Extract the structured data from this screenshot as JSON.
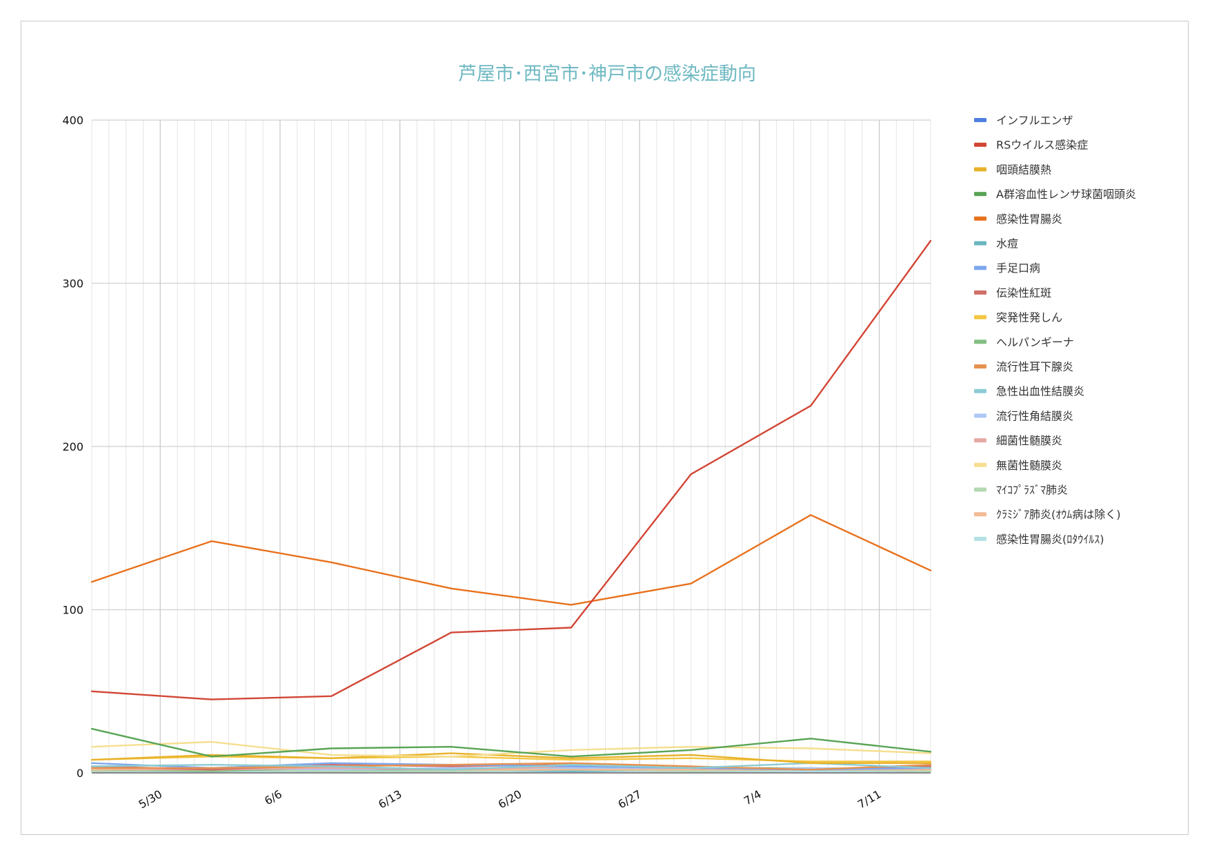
{
  "chart_data": {
    "type": "line",
    "title": "芦屋市･西宮市･神戸市の感染症動向",
    "xlabel": "",
    "ylabel": "",
    "ylim": [
      0,
      400
    ],
    "yticks": [
      0,
      100,
      200,
      300,
      400
    ],
    "x_tick_labels": [
      "5/30",
      "6/6",
      "6/13",
      "6/20",
      "6/27",
      "7/4",
      "7/11"
    ],
    "x_tick_days": [
      4,
      11,
      18,
      25,
      32,
      39,
      46
    ],
    "x": [
      0,
      7,
      14,
      21,
      28,
      35,
      42,
      49
    ],
    "grid": true,
    "legend_position": "right",
    "series": [
      {
        "name": "インフルエンザ",
        "color": "#4f7fdf",
        "values": [
          1,
          1,
          1,
          1,
          1,
          1,
          1,
          1
        ]
      },
      {
        "name": "RSウイルス感染症",
        "color": "#d24535",
        "values": [
          50,
          45,
          47,
          86,
          89,
          183,
          225,
          326
        ]
      },
      {
        "name": "咽頭結膜熱",
        "color": "#e8b22b",
        "values": [
          8,
          11,
          9,
          12,
          9,
          11,
          6,
          6
        ]
      },
      {
        "name": "A群溶血性レンサ球菌咽頭炎",
        "color": "#58a455",
        "values": [
          27,
          10,
          15,
          16,
          10,
          14,
          21,
          13
        ]
      },
      {
        "name": "感染性胃腸炎",
        "color": "#e8711c",
        "values": [
          117,
          142,
          129,
          113,
          103,
          116,
          158,
          124
        ]
      },
      {
        "name": "水痘",
        "color": "#6bb6c1",
        "values": [
          2,
          2,
          1,
          2,
          1,
          2,
          2,
          1
        ]
      },
      {
        "name": "手足口病",
        "color": "#7ea7ee",
        "values": [
          6,
          3,
          6,
          5,
          4,
          3,
          2,
          3
        ]
      },
      {
        "name": "伝染性紅斑",
        "color": "#cf6f68",
        "values": [
          4,
          2,
          5,
          4,
          5,
          3,
          2,
          4
        ]
      },
      {
        "name": "突発性発しん",
        "color": "#f3c642",
        "values": [
          8,
          10,
          9,
          10,
          8,
          9,
          7,
          7
        ]
      },
      {
        "name": "ヘルパンギーナ",
        "color": "#84be82",
        "values": [
          2,
          1,
          3,
          2,
          2,
          3,
          3,
          2
        ]
      },
      {
        "name": "流行性耳下腺炎",
        "color": "#e6924f",
        "values": [
          3,
          3,
          4,
          5,
          6,
          4,
          2,
          5
        ]
      },
      {
        "name": "急性出血性結膜炎",
        "color": "#8ccbd3",
        "values": [
          4,
          5,
          4,
          2,
          5,
          3,
          6,
          3
        ]
      },
      {
        "name": "流行性角結膜炎",
        "color": "#adc8f5",
        "values": [
          2,
          3,
          2,
          3,
          3,
          2,
          3,
          2
        ]
      },
      {
        "name": "細菌性髄膜炎",
        "color": "#e7a8a4",
        "values": [
          3,
          2,
          3,
          2,
          4,
          3,
          2,
          3
        ]
      },
      {
        "name": "無菌性髄膜炎",
        "color": "#f5de8e",
        "values": [
          16,
          19,
          11,
          10,
          14,
          16,
          15,
          12
        ]
      },
      {
        "name": "ﾏｲｺﾌﾟﾗｽﾞﾏ肺炎",
        "color": "#b5d9b2",
        "values": [
          1,
          2,
          1,
          1,
          2,
          1,
          2,
          1
        ]
      },
      {
        "name": "ｸﾗﾐｼﾞｱ肺炎(ｵｳﾑ病は除く)",
        "color": "#f2bc96",
        "values": [
          2,
          2,
          3,
          2,
          2,
          2,
          2,
          2
        ]
      },
      {
        "name": "感染性胃腸炎(ﾛﾀｳｲﾙｽ)",
        "color": "#b4e1e3",
        "values": [
          1,
          1,
          1,
          1,
          1,
          1,
          1,
          1
        ]
      }
    ]
  }
}
